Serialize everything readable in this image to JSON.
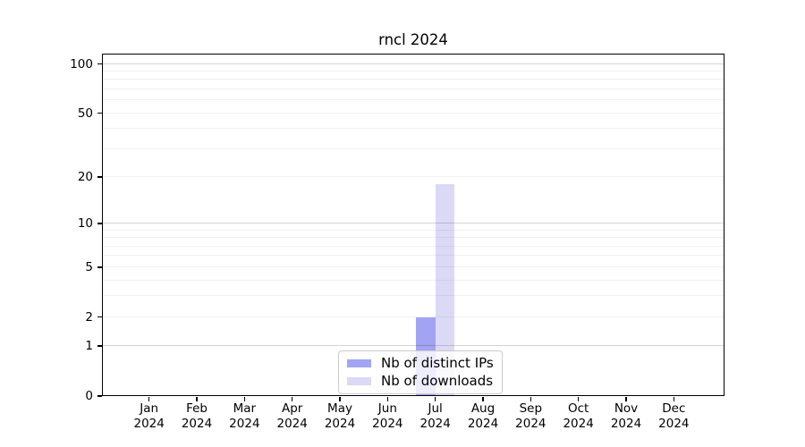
{
  "chart_data": {
    "type": "bar",
    "title": "rncl 2024",
    "scale": "log1p",
    "grid": true,
    "legend_position": "lower center",
    "categories": [
      "Jan",
      "Feb",
      "Mar",
      "Apr",
      "May",
      "Jun",
      "Jul",
      "Aug",
      "Sep",
      "Oct",
      "Nov",
      "Dec"
    ],
    "year": "2024",
    "series": [
      {
        "name": "Nb of distinct IPs",
        "color": "#a3a3f3",
        "values": [
          0,
          0,
          0,
          0,
          0,
          0,
          2,
          0,
          0,
          0,
          0,
          0
        ]
      },
      {
        "name": "Nb of downloads",
        "color": "#dadaf6",
        "values": [
          0,
          0,
          0,
          0,
          0,
          0,
          18,
          0,
          0,
          0,
          0,
          0
        ]
      }
    ],
    "y_ticks": [
      0,
      1,
      2,
      5,
      10,
      20,
      50,
      100
    ],
    "y_major_grid": [
      1,
      10,
      100
    ],
    "y_minor_grid": [
      2,
      3,
      4,
      5,
      6,
      7,
      8,
      9,
      20,
      30,
      40,
      50,
      60,
      70,
      80,
      90
    ],
    "ylim": [
      0,
      115.8
    ],
    "axis_color": "#000000",
    "background_color": "#ffffff"
  }
}
